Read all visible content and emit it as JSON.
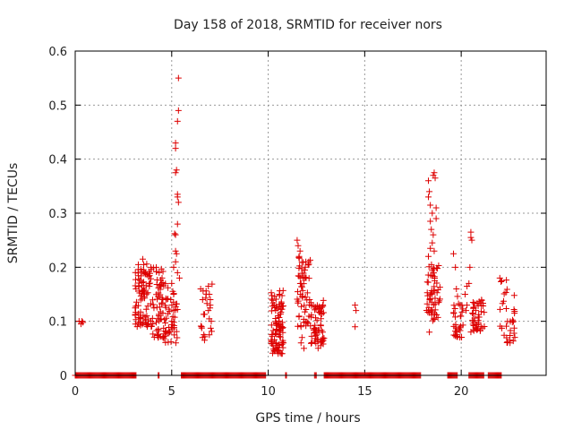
{
  "chart_data": {
    "type": "scatter",
    "title": "Day 158 of 2018, SRMTID for receiver nors",
    "xlabel": "GPS time / hours",
    "ylabel": "SRMTID / TECUs",
    "xlim": [
      0,
      24.4
    ],
    "ylim": [
      0,
      0.6
    ],
    "xticks": [
      "0",
      "5",
      "10",
      "15",
      "20"
    ],
    "yticks": [
      "0",
      "0.1",
      "0.2",
      "0.3",
      "0.4",
      "0.5",
      "0.6"
    ],
    "grid": true,
    "marker": "+",
    "marker_color": "#dd0000",
    "series": [
      {
        "name": "SRMTID",
        "zero_segments": [
          [
            0.0,
            3.15
          ],
          [
            4.3,
            4.35
          ],
          [
            5.5,
            9.9
          ],
          [
            10.9,
            10.95
          ],
          [
            12.4,
            12.5
          ],
          [
            12.9,
            17.9
          ],
          [
            19.3,
            19.8
          ],
          [
            20.4,
            21.2
          ],
          [
            21.4,
            22.1
          ]
        ],
        "clusters": [
          {
            "x": [
              3.1,
              3.95
            ],
            "y": [
              0.09,
              0.21
            ],
            "n": 90
          },
          {
            "x": [
              3.95,
              4.6
            ],
            "y": [
              0.07,
              0.2
            ],
            "n": 55
          },
          {
            "x": [
              4.6,
              5.3
            ],
            "y": [
              0.06,
              0.17
            ],
            "n": 45
          },
          {
            "x": [
              6.5,
              7.1
            ],
            "y": [
              0.06,
              0.17
            ],
            "n": 16
          },
          {
            "x": [
              10.15,
              10.8
            ],
            "y": [
              0.04,
              0.16
            ],
            "n": 100
          },
          {
            "x": [
              11.5,
              12.2
            ],
            "y": [
              0.09,
              0.22
            ],
            "n": 55
          },
          {
            "x": [
              12.2,
              12.9
            ],
            "y": [
              0.05,
              0.14
            ],
            "n": 60
          },
          {
            "x": [
              18.2,
              18.9
            ],
            "y": [
              0.1,
              0.21
            ],
            "n": 60
          },
          {
            "x": [
              19.6,
              20.1
            ],
            "y": [
              0.07,
              0.15
            ],
            "n": 30
          },
          {
            "x": [
              20.5,
              21.2
            ],
            "y": [
              0.08,
              0.14
            ],
            "n": 45
          },
          {
            "x": [
              22.0,
              22.4
            ],
            "y": [
              0.06,
              0.18
            ],
            "n": 18
          },
          {
            "x": [
              22.5,
              22.8
            ],
            "y": [
              0.06,
              0.15
            ],
            "n": 16
          }
        ],
        "points": [
          [
            0.2,
            0.1
          ],
          [
            0.35,
            0.1
          ],
          [
            0.3,
            0.095
          ],
          [
            0.4,
            0.098
          ],
          [
            5.35,
            0.55
          ],
          [
            5.35,
            0.49
          ],
          [
            5.3,
            0.47
          ],
          [
            5.2,
            0.43
          ],
          [
            5.2,
            0.42
          ],
          [
            5.25,
            0.38
          ],
          [
            5.2,
            0.375
          ],
          [
            5.3,
            0.335
          ],
          [
            5.3,
            0.33
          ],
          [
            5.35,
            0.32
          ],
          [
            5.3,
            0.28
          ],
          [
            5.2,
            0.26
          ],
          [
            5.15,
            0.262
          ],
          [
            5.2,
            0.23
          ],
          [
            5.2,
            0.21
          ],
          [
            5.25,
            0.225
          ],
          [
            5.1,
            0.2
          ],
          [
            5.3,
            0.19
          ],
          [
            5.4,
            0.18
          ],
          [
            5.0,
            0.17
          ],
          [
            5.1,
            0.15
          ],
          [
            4.95,
            0.14
          ],
          [
            5.1,
            0.12
          ],
          [
            5.0,
            0.1
          ],
          [
            3.5,
            0.215
          ],
          [
            3.55,
            0.205
          ],
          [
            4.2,
            0.2
          ],
          [
            4.35,
            0.19
          ],
          [
            4.5,
            0.18
          ],
          [
            4.55,
            0.07
          ],
          [
            4.6,
            0.068
          ],
          [
            6.5,
            0.16
          ],
          [
            6.6,
            0.14
          ],
          [
            6.55,
            0.09
          ],
          [
            6.6,
            0.07
          ],
          [
            6.7,
            0.065
          ],
          [
            6.9,
            0.165
          ],
          [
            6.95,
            0.15
          ],
          [
            7.0,
            0.14
          ],
          [
            7.0,
            0.13
          ],
          [
            6.9,
            0.12
          ],
          [
            7.05,
            0.1
          ],
          [
            6.95,
            0.075
          ],
          [
            11.5,
            0.25
          ],
          [
            11.55,
            0.24
          ],
          [
            11.65,
            0.23
          ],
          [
            11.6,
            0.22
          ],
          [
            11.95,
            0.21
          ],
          [
            12.1,
            0.21
          ],
          [
            11.9,
            0.195
          ],
          [
            11.8,
            0.18
          ],
          [
            11.7,
            0.17
          ],
          [
            11.7,
            0.09
          ],
          [
            11.75,
            0.07
          ],
          [
            11.85,
            0.05
          ],
          [
            11.7,
            0.06
          ],
          [
            14.5,
            0.13
          ],
          [
            14.55,
            0.12
          ],
          [
            14.5,
            0.09
          ],
          [
            18.3,
            0.36
          ],
          [
            18.35,
            0.34
          ],
          [
            18.6,
            0.375
          ],
          [
            18.65,
            0.365
          ],
          [
            18.55,
            0.37
          ],
          [
            18.3,
            0.33
          ],
          [
            18.4,
            0.315
          ],
          [
            18.7,
            0.31
          ],
          [
            18.5,
            0.3
          ],
          [
            18.4,
            0.285
          ],
          [
            18.7,
            0.29
          ],
          [
            18.45,
            0.27
          ],
          [
            18.55,
            0.26
          ],
          [
            18.5,
            0.245
          ],
          [
            18.4,
            0.235
          ],
          [
            18.6,
            0.23
          ],
          [
            18.3,
            0.22
          ],
          [
            18.35,
            0.08
          ],
          [
            19.6,
            0.225
          ],
          [
            19.7,
            0.2
          ],
          [
            19.75,
            0.16
          ],
          [
            20.5,
            0.265
          ],
          [
            20.5,
            0.255
          ],
          [
            20.55,
            0.25
          ],
          [
            20.45,
            0.2
          ],
          [
            20.4,
            0.17
          ],
          [
            20.3,
            0.165
          ],
          [
            20.2,
            0.15
          ],
          [
            20.3,
            0.13
          ],
          [
            20.25,
            0.12
          ],
          [
            22.0,
            0.18
          ],
          [
            22.1,
            0.175
          ]
        ]
      }
    ]
  }
}
